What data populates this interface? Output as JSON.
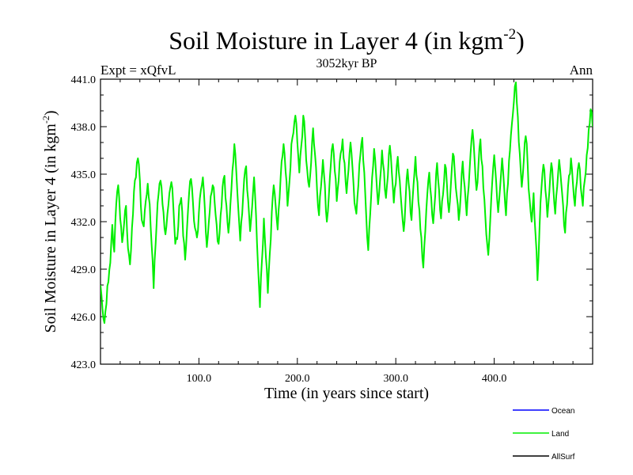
{
  "chart_data": {
    "type": "line",
    "title_main": "Soil Moisture in Layer 4 (in kgm",
    "title_sup": "-2",
    "title_close": ")",
    "subtitle_center": "3052kyr BP",
    "subtitle_left": "Expt = xQfvL",
    "subtitle_right": "Ann",
    "xlabel": "Time (in years since start)",
    "ylabel_main": "Soil Moisture in Layer 4 (in kgm",
    "ylabel_sup": "-2",
    "ylabel_close": ")",
    "xlim": [
      0,
      500
    ],
    "ylim": [
      423,
      441
    ],
    "xticks": [
      100,
      200,
      300,
      400
    ],
    "xtick_labels": [
      "100.0",
      "200.0",
      "300.0",
      "400.0"
    ],
    "yticks": [
      423,
      426,
      429,
      432,
      435,
      438,
      441
    ],
    "ytick_labels": [
      "423.0",
      "426.0",
      "429.0",
      "432.0",
      "435.0",
      "438.0",
      "441.0"
    ],
    "legend": [
      {
        "label": "Ocean",
        "color": "#0000ff"
      },
      {
        "label": "Land",
        "color": "#00ee00"
      },
      {
        "label": "AllSurf",
        "color": "#000000"
      }
    ],
    "series": [
      {
        "name": "Land",
        "color": "#00ee00",
        "anchors": [
          [
            0,
            428.0
          ],
          [
            2,
            426.5
          ],
          [
            4,
            425.6
          ],
          [
            6,
            426.8
          ],
          [
            8,
            428.2
          ],
          [
            10,
            429.4
          ],
          [
            12,
            431.8
          ],
          [
            14,
            430.1
          ],
          [
            16,
            433.1
          ],
          [
            18,
            434.3
          ],
          [
            20,
            432.2
          ],
          [
            22,
            430.7
          ],
          [
            24,
            431.9
          ],
          [
            26,
            433.0
          ],
          [
            28,
            430.3
          ],
          [
            30,
            429.3
          ],
          [
            32,
            431.6
          ],
          [
            34,
            433.9
          ],
          [
            36,
            434.8
          ],
          [
            38,
            436.0
          ],
          [
            40,
            434.6
          ],
          [
            42,
            432.1
          ],
          [
            44,
            431.7
          ],
          [
            46,
            433.3
          ],
          [
            48,
            434.4
          ],
          [
            50,
            433.1
          ],
          [
            52,
            430.5
          ],
          [
            54,
            427.8
          ],
          [
            56,
            430.6
          ],
          [
            58,
            433.2
          ],
          [
            60,
            434.4
          ],
          [
            62,
            434.2
          ],
          [
            64,
            432.6
          ],
          [
            66,
            431.2
          ],
          [
            68,
            432.5
          ],
          [
            70,
            433.8
          ],
          [
            72,
            434.5
          ],
          [
            74,
            432.9
          ],
          [
            76,
            430.6
          ],
          [
            78,
            430.9
          ],
          [
            80,
            433.0
          ],
          [
            82,
            433.5
          ],
          [
            84,
            431.1
          ],
          [
            86,
            429.6
          ],
          [
            88,
            431.7
          ],
          [
            90,
            433.8
          ],
          [
            92,
            434.7
          ],
          [
            94,
            433.2
          ],
          [
            96,
            431.6
          ],
          [
            98,
            431.0
          ],
          [
            100,
            432.6
          ],
          [
            102,
            434.0
          ],
          [
            104,
            434.8
          ],
          [
            106,
            432.8
          ],
          [
            108,
            430.4
          ],
          [
            110,
            431.9
          ],
          [
            112,
            433.6
          ],
          [
            114,
            434.3
          ],
          [
            116,
            433.2
          ],
          [
            118,
            431.8
          ],
          [
            120,
            430.6
          ],
          [
            122,
            432.4
          ],
          [
            124,
            434.2
          ],
          [
            126,
            434.9
          ],
          [
            128,
            433.0
          ],
          [
            130,
            431.3
          ],
          [
            132,
            433.1
          ],
          [
            134,
            435.2
          ],
          [
            136,
            436.9
          ],
          [
            138,
            435.1
          ],
          [
            140,
            432.8
          ],
          [
            142,
            430.8
          ],
          [
            144,
            432.5
          ],
          [
            146,
            434.7
          ],
          [
            148,
            435.5
          ],
          [
            150,
            433.4
          ],
          [
            152,
            431.4
          ],
          [
            154,
            432.9
          ],
          [
            156,
            434.8
          ],
          [
            158,
            432.4
          ],
          [
            160,
            429.3
          ],
          [
            162,
            426.6
          ],
          [
            164,
            429.5
          ],
          [
            166,
            432.2
          ],
          [
            168,
            429.8
          ],
          [
            170,
            427.5
          ],
          [
            172,
            430.0
          ],
          [
            174,
            432.6
          ],
          [
            176,
            434.3
          ],
          [
            178,
            433.0
          ],
          [
            180,
            431.5
          ],
          [
            182,
            433.5
          ],
          [
            184,
            435.8
          ],
          [
            186,
            436.9
          ],
          [
            188,
            435.2
          ],
          [
            190,
            433.0
          ],
          [
            192,
            434.5
          ],
          [
            194,
            436.9
          ],
          [
            196,
            437.6
          ],
          [
            198,
            438.7
          ],
          [
            200,
            437.0
          ],
          [
            202,
            435.1
          ],
          [
            204,
            436.8
          ],
          [
            206,
            438.7
          ],
          [
            208,
            437.2
          ],
          [
            210,
            435.3
          ],
          [
            212,
            434.2
          ],
          [
            214,
            435.7
          ],
          [
            216,
            437.9
          ],
          [
            218,
            436.2
          ],
          [
            220,
            434.0
          ],
          [
            222,
            432.4
          ],
          [
            224,
            434.2
          ],
          [
            226,
            435.9
          ],
          [
            228,
            434.3
          ],
          [
            230,
            432.0
          ],
          [
            232,
            433.6
          ],
          [
            234,
            435.6
          ],
          [
            236,
            436.9
          ],
          [
            238,
            435.2
          ],
          [
            240,
            433.3
          ],
          [
            242,
            434.6
          ],
          [
            244,
            436.3
          ],
          [
            246,
            437.2
          ],
          [
            248,
            435.7
          ],
          [
            250,
            433.8
          ],
          [
            252,
            435.3
          ],
          [
            254,
            437.0
          ],
          [
            256,
            435.4
          ],
          [
            258,
            433.2
          ],
          [
            260,
            432.5
          ],
          [
            262,
            434.3
          ],
          [
            264,
            436.2
          ],
          [
            266,
            437.3
          ],
          [
            268,
            435.1
          ],
          [
            270,
            432.3
          ],
          [
            272,
            430.2
          ],
          [
            274,
            432.5
          ],
          [
            276,
            434.8
          ],
          [
            278,
            436.6
          ],
          [
            280,
            435.0
          ],
          [
            282,
            433.1
          ],
          [
            284,
            434.6
          ],
          [
            286,
            436.5
          ],
          [
            288,
            435.2
          ],
          [
            290,
            433.5
          ],
          [
            292,
            434.9
          ],
          [
            294,
            436.8
          ],
          [
            296,
            435.1
          ],
          [
            298,
            433.2
          ],
          [
            300,
            434.4
          ],
          [
            302,
            436.1
          ],
          [
            304,
            434.6
          ],
          [
            306,
            432.8
          ],
          [
            308,
            431.4
          ],
          [
            310,
            433.4
          ],
          [
            312,
            435.3
          ],
          [
            314,
            433.9
          ],
          [
            316,
            432.1
          ],
          [
            318,
            434.3
          ],
          [
            320,
            436.1
          ],
          [
            322,
            434.5
          ],
          [
            324,
            432.7
          ],
          [
            326,
            431.0
          ],
          [
            328,
            429.1
          ],
          [
            330,
            431.4
          ],
          [
            332,
            433.7
          ],
          [
            334,
            435.1
          ],
          [
            336,
            433.5
          ],
          [
            338,
            431.9
          ],
          [
            340,
            433.6
          ],
          [
            342,
            435.7
          ],
          [
            344,
            434.0
          ],
          [
            346,
            432.2
          ],
          [
            348,
            433.7
          ],
          [
            350,
            435.6
          ],
          [
            352,
            434.3
          ],
          [
            354,
            432.6
          ],
          [
            356,
            434.4
          ],
          [
            358,
            436.3
          ],
          [
            360,
            435.1
          ],
          [
            362,
            433.6
          ],
          [
            364,
            432.1
          ],
          [
            366,
            433.7
          ],
          [
            368,
            435.8
          ],
          [
            370,
            434.2
          ],
          [
            372,
            432.4
          ],
          [
            374,
            434.2
          ],
          [
            376,
            436.3
          ],
          [
            378,
            437.8
          ],
          [
            380,
            436.0
          ],
          [
            382,
            434.0
          ],
          [
            384,
            435.6
          ],
          [
            386,
            437.2
          ],
          [
            388,
            435.5
          ],
          [
            390,
            433.4
          ],
          [
            392,
            431.2
          ],
          [
            394,
            429.9
          ],
          [
            396,
            432.1
          ],
          [
            398,
            434.5
          ],
          [
            400,
            436.2
          ],
          [
            402,
            434.5
          ],
          [
            404,
            432.6
          ],
          [
            406,
            434.2
          ],
          [
            408,
            436.0
          ],
          [
            410,
            434.3
          ],
          [
            412,
            432.4
          ],
          [
            414,
            434.4
          ],
          [
            416,
            436.5
          ],
          [
            418,
            438.2
          ],
          [
            420,
            439.6
          ],
          [
            422,
            440.8
          ],
          [
            424,
            438.6
          ],
          [
            426,
            436.3
          ],
          [
            428,
            434.2
          ],
          [
            430,
            435.8
          ],
          [
            432,
            437.4
          ],
          [
            434,
            435.6
          ],
          [
            436,
            433.4
          ],
          [
            438,
            432.0
          ],
          [
            440,
            433.8
          ],
          [
            442,
            431.2
          ],
          [
            444,
            428.3
          ],
          [
            446,
            431.5
          ],
          [
            448,
            434.1
          ],
          [
            450,
            435.6
          ],
          [
            452,
            434.0
          ],
          [
            454,
            432.3
          ],
          [
            456,
            433.9
          ],
          [
            458,
            435.7
          ],
          [
            460,
            434.2
          ],
          [
            462,
            432.5
          ],
          [
            464,
            434.2
          ],
          [
            466,
            435.9
          ],
          [
            468,
            434.5
          ],
          [
            470,
            433.0
          ],
          [
            472,
            431.3
          ],
          [
            474,
            433.1
          ],
          [
            476,
            434.9
          ],
          [
            478,
            436.0
          ],
          [
            480,
            434.4
          ],
          [
            482,
            433.0
          ],
          [
            484,
            434.5
          ],
          [
            486,
            435.7
          ],
          [
            488,
            434.1
          ],
          [
            490,
            433.0
          ],
          [
            492,
            434.6
          ],
          [
            494,
            436.2
          ],
          [
            496,
            437.8
          ],
          [
            498,
            439.1
          ],
          [
            500,
            438.0
          ]
        ]
      }
    ]
  }
}
